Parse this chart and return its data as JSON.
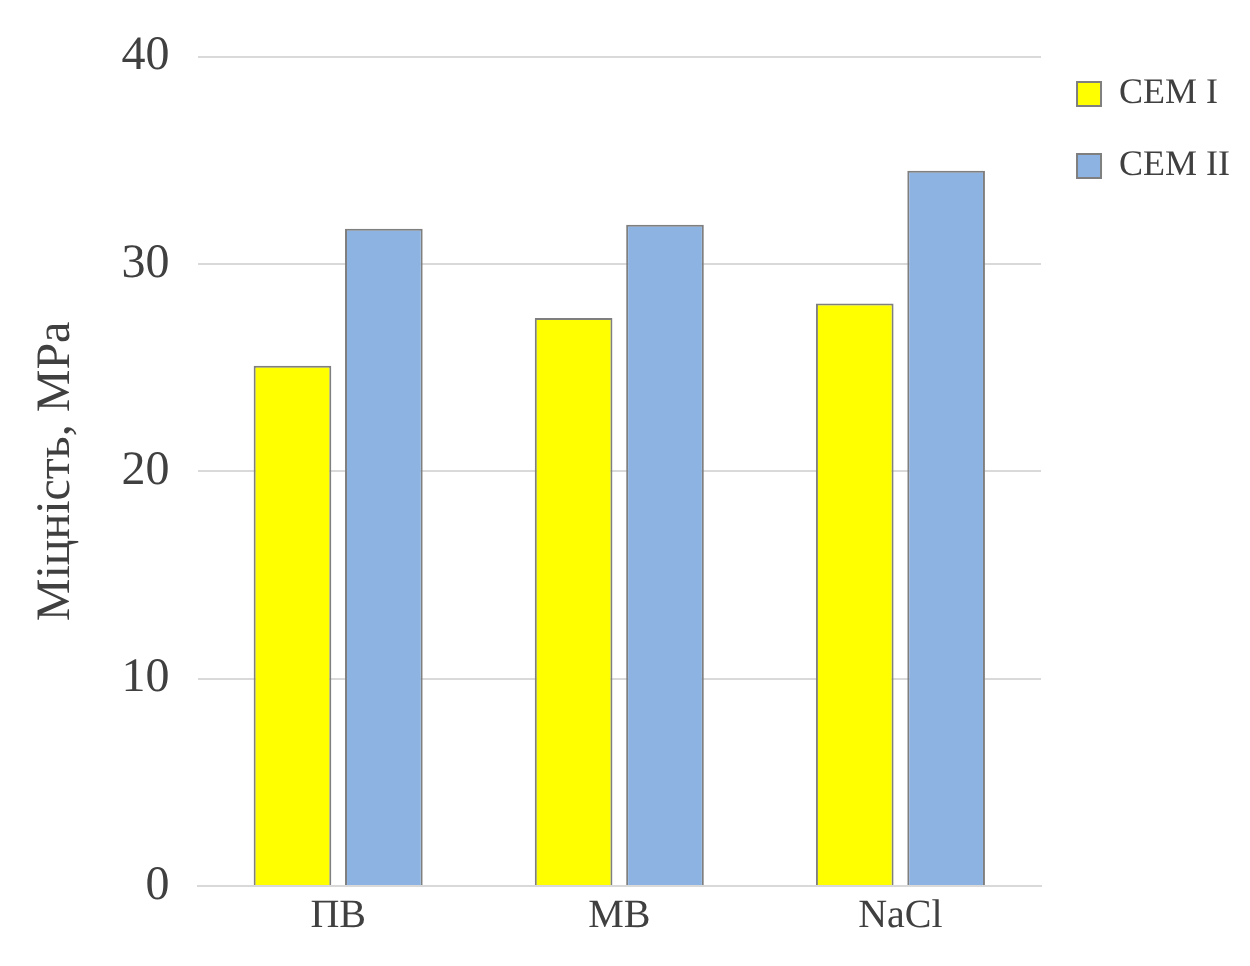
{
  "chart_data": {
    "type": "bar",
    "ylabel": "Міцність, МРа",
    "categories": [
      "ПВ",
      "МВ",
      "NaCl"
    ],
    "series": [
      {
        "name": "CEM I",
        "color": "#ffff00",
        "values": [
          25.1,
          27.4,
          28.1
        ]
      },
      {
        "name": "CEM II",
        "color": "#8db3e2",
        "values": [
          31.7,
          31.9,
          34.5
        ]
      }
    ],
    "ylim": [
      0,
      40
    ],
    "yticks": [
      0,
      10,
      20,
      30,
      40
    ],
    "grid": "y",
    "legend": "top right"
  }
}
